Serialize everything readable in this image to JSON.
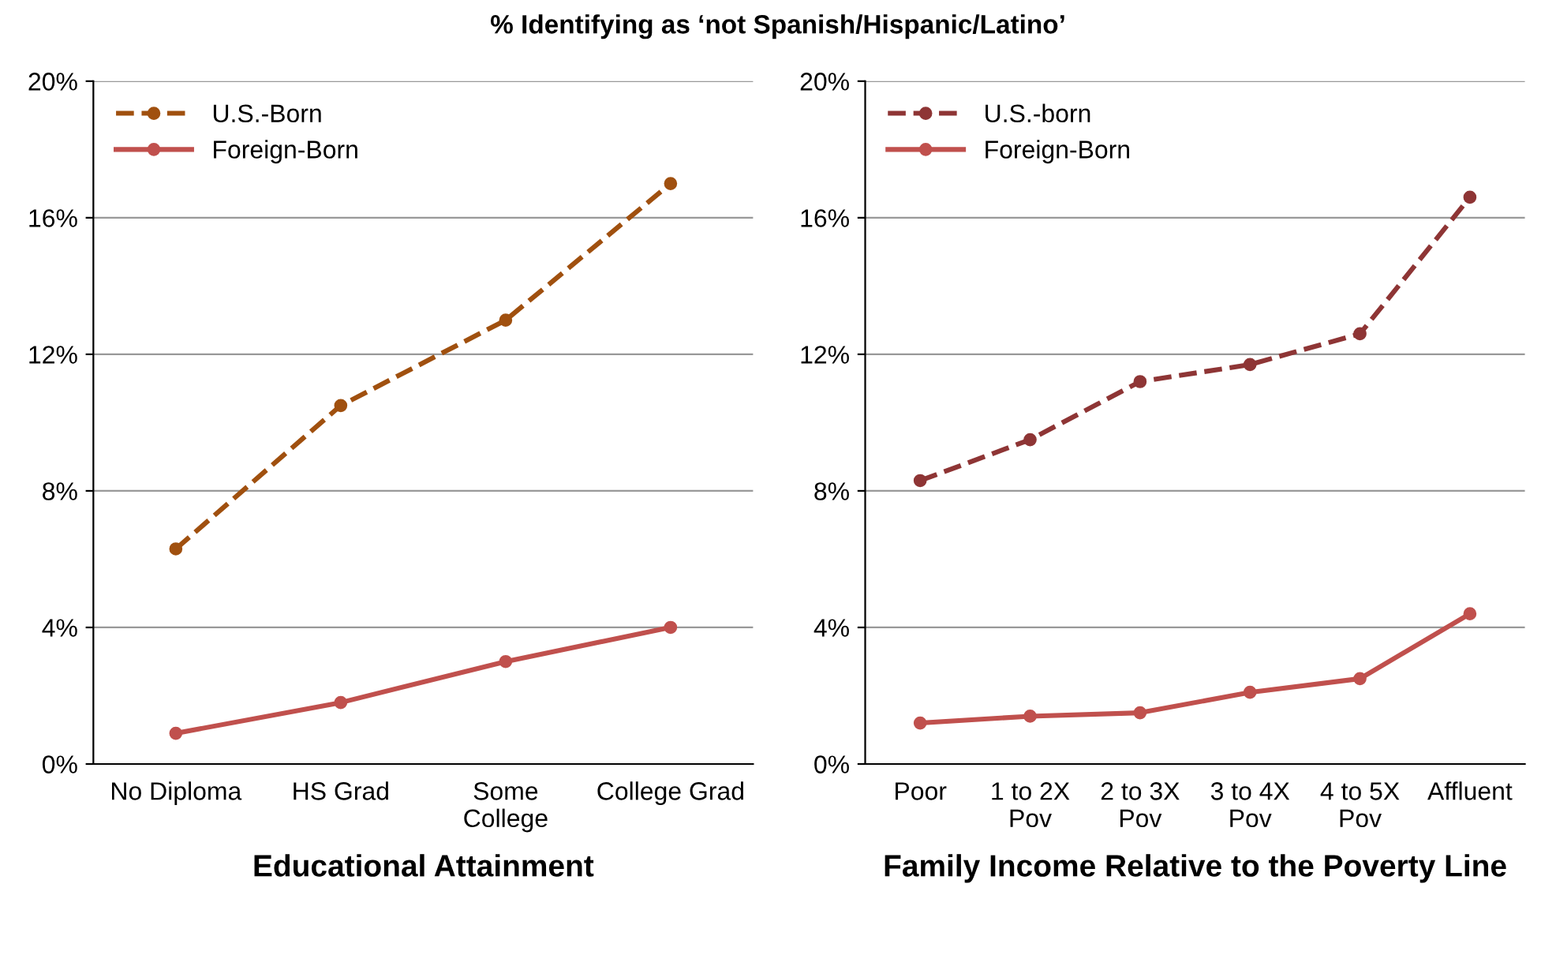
{
  "chart_data": [
    {
      "type": "line",
      "title": "% Identifying as ‘not Spanish/Hispanic/Latino’",
      "xlabel": "Educational Attainment",
      "categories": [
        "No Diploma",
        "HS Grad",
        "Some\nCollege",
        "College Grad"
      ],
      "series": [
        {
          "name": "U.S.-Born",
          "color": "#a0500f",
          "line_style": "dashed",
          "values": [
            6.3,
            10.5,
            13.0,
            17.0
          ]
        },
        {
          "name": "Foreign-Born",
          "color": "#c0504d",
          "line_style": "solid",
          "values": [
            0.9,
            1.8,
            3.0,
            4.0
          ]
        }
      ],
      "ylim": [
        0,
        20
      ],
      "yticks": [
        {
          "value": 0,
          "label": "0%"
        },
        {
          "value": 4,
          "label": "4%"
        },
        {
          "value": 8,
          "label": "8%"
        },
        {
          "value": 12,
          "label": "12%"
        },
        {
          "value": 16,
          "label": "16%"
        },
        {
          "value": 20,
          "label": "20%"
        }
      ],
      "grid": "y",
      "legend": "top left",
      "marker": "circle"
    },
    {
      "type": "line",
      "xlabel": "Family Income Relative to the Poverty Line",
      "categories": [
        "Poor",
        "1 to 2X\nPov",
        "2 to 3X\nPov",
        "3 to 4X\nPov",
        "4 to 5X\nPov",
        "Affluent"
      ],
      "series": [
        {
          "name": "U.S.-born",
          "color": "#8e3535",
          "line_style": "dashed",
          "values": [
            8.3,
            9.5,
            11.2,
            11.7,
            12.6,
            16.6
          ]
        },
        {
          "name": "Foreign-Born",
          "color": "#c0504d",
          "line_style": "solid",
          "values": [
            1.2,
            1.4,
            1.5,
            2.1,
            2.5,
            4.4
          ]
        }
      ],
      "ylim": [
        0,
        20
      ],
      "yticks": [
        {
          "value": 0,
          "label": "0%"
        },
        {
          "value": 4,
          "label": "4%"
        },
        {
          "value": 8,
          "label": "8%"
        },
        {
          "value": 12,
          "label": "12%"
        },
        {
          "value": 16,
          "label": "16%"
        },
        {
          "value": 20,
          "label": "20%"
        }
      ],
      "grid": "y",
      "legend": "top left",
      "marker": "circle"
    }
  ]
}
